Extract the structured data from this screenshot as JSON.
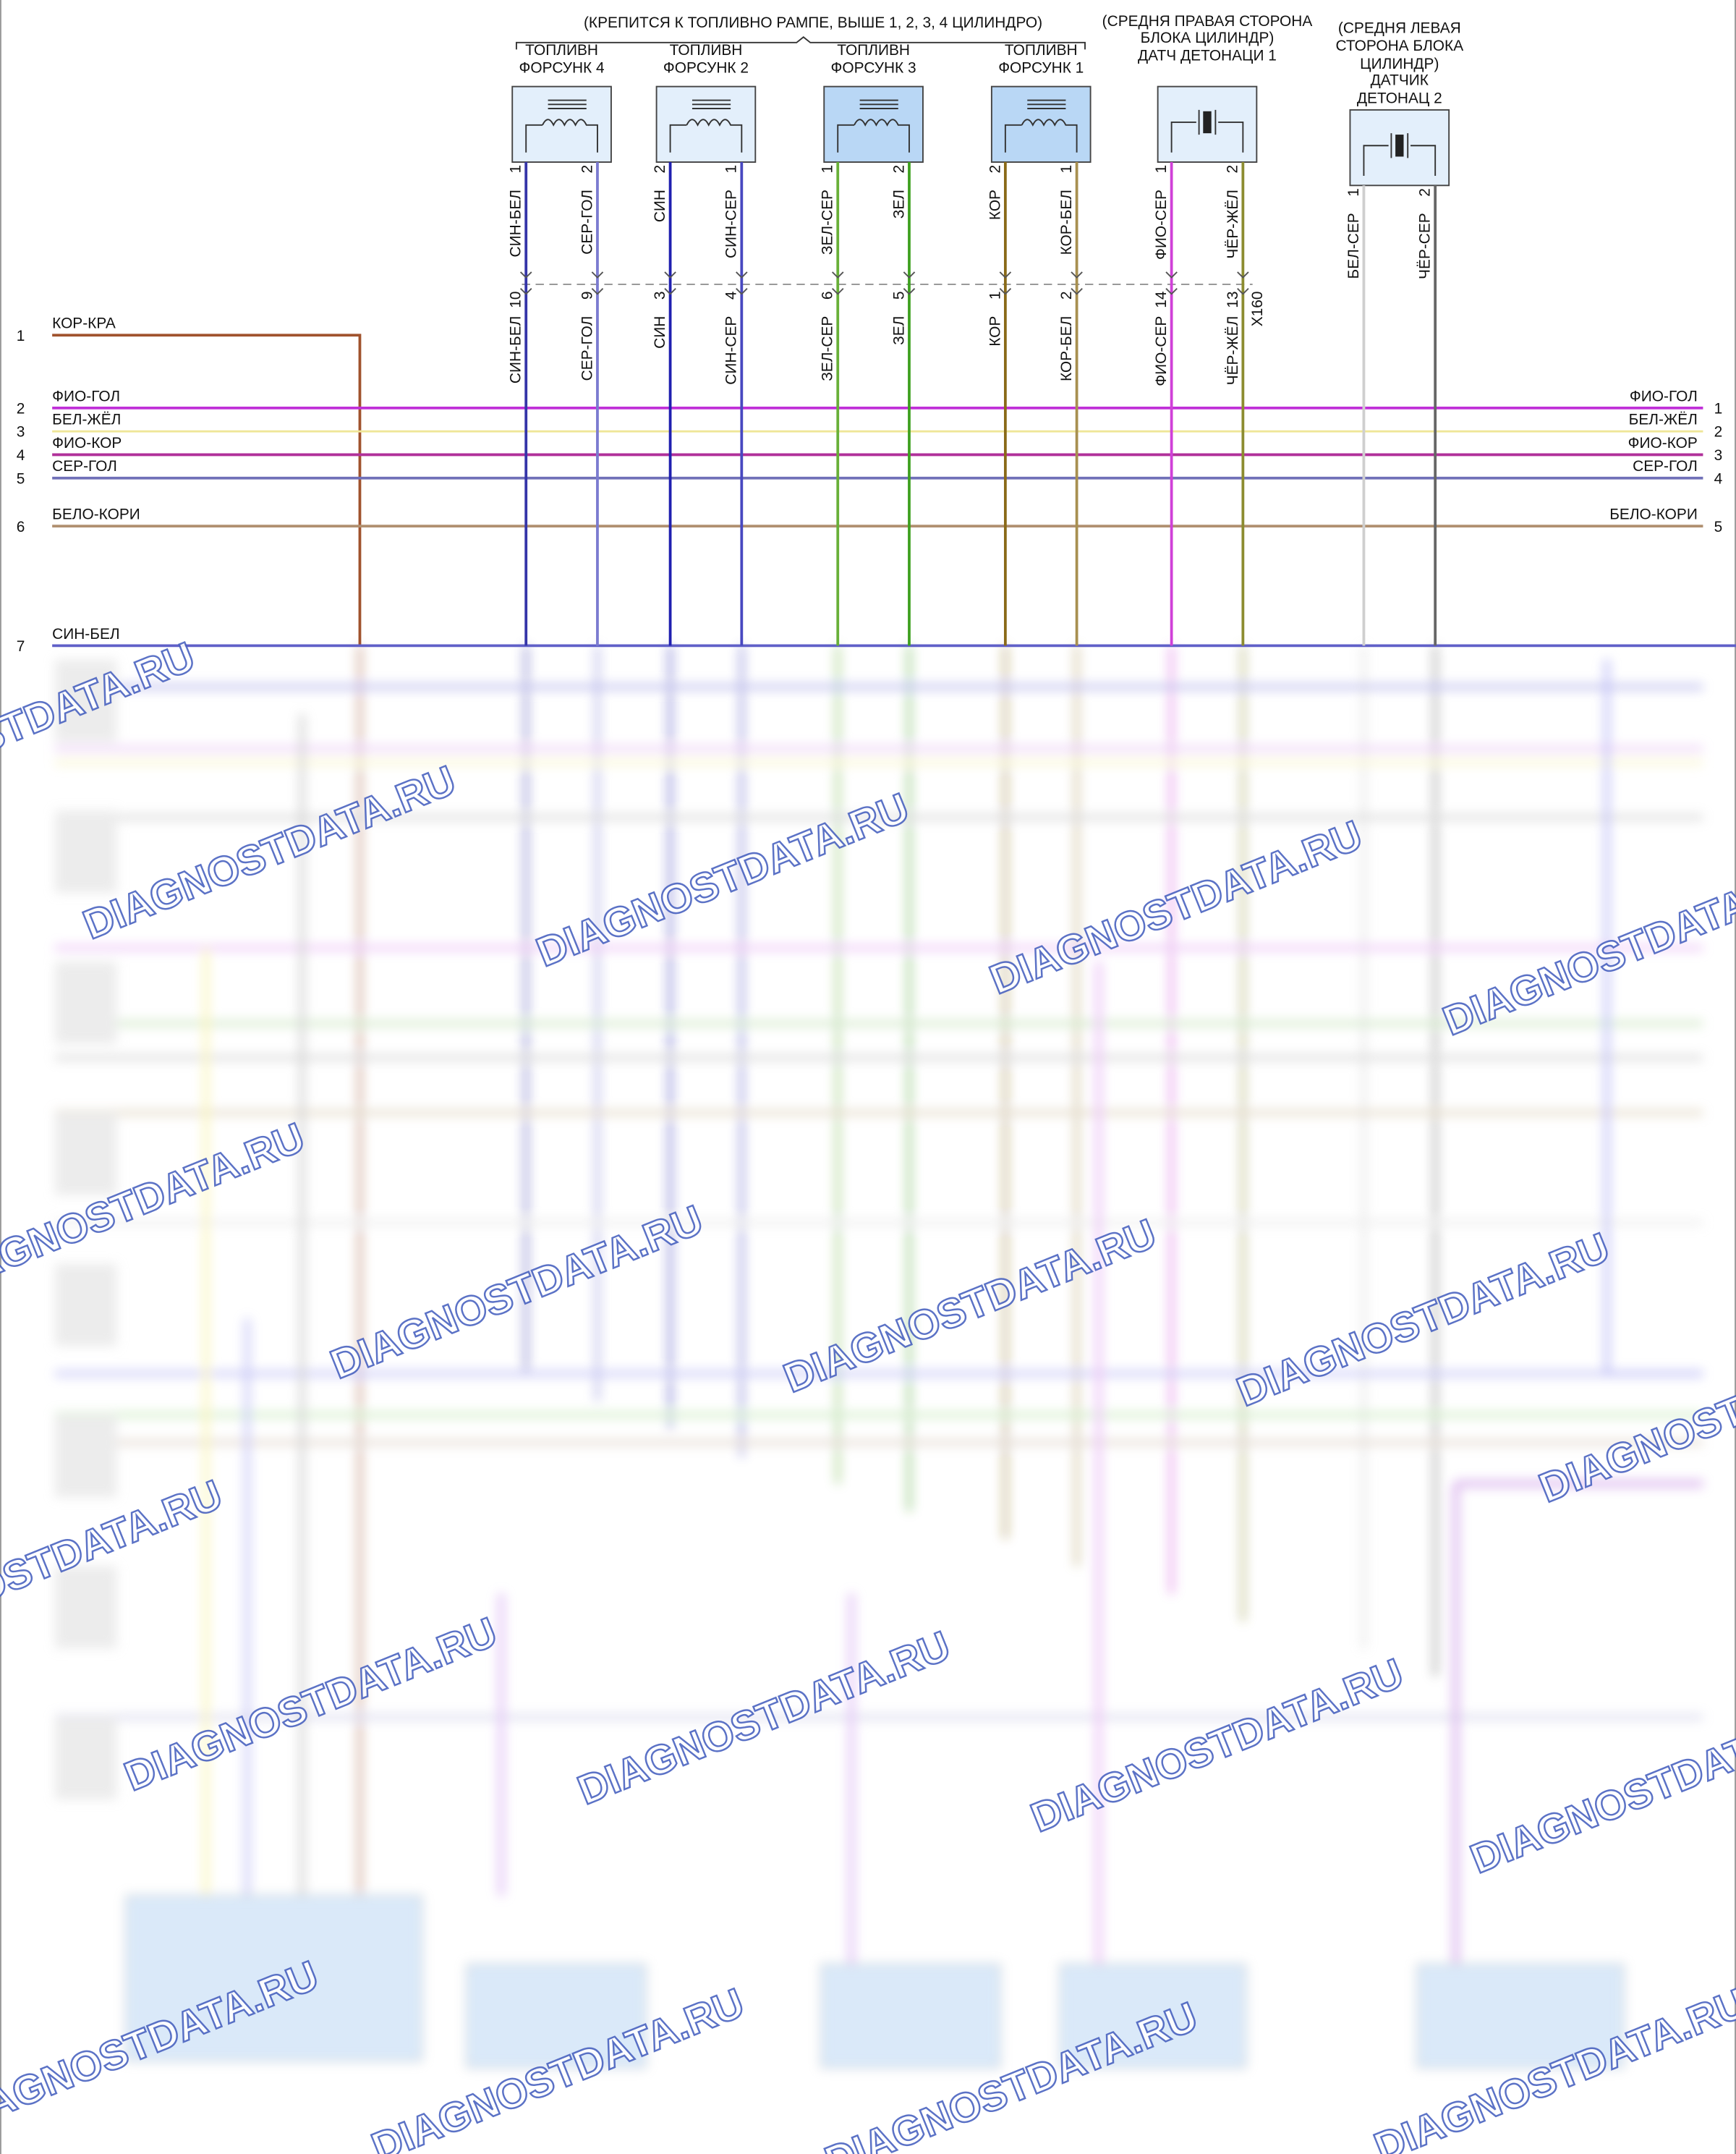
{
  "header": {
    "note": "(КРЕПИТСЯ К ТОПЛИВНО РАМПЕ, ВЫШЕ 1, 2, 3, 4 ЦИЛИНДРО)"
  },
  "injectors": [
    {
      "label": [
        "ТОПЛИВН",
        "ФОРСУНК 4"
      ],
      "pins": [
        {
          "wire": "СИН-БЕЛ",
          "pin": "1",
          "conn_pin": "10",
          "color": "#3535a8"
        },
        {
          "wire": "СЕР-ГОЛ",
          "pin": "2",
          "conn_pin": "9",
          "color": "#7b7bd0"
        }
      ]
    },
    {
      "label": [
        "ТОПЛИВН",
        "ФОРСУНК 2"
      ],
      "pins": [
        {
          "wire": "СИН",
          "pin": "2",
          "conn_pin": "3",
          "color": "#2020b0"
        },
        {
          "wire": "СИН-СЕР",
          "pin": "1",
          "conn_pin": "4",
          "color": "#4848c0"
        }
      ]
    },
    {
      "label": [
        "ТОПЛИВН",
        "ФОРСУНК 3"
      ],
      "pins": [
        {
          "wire": "ЗЕЛ-СЕР",
          "pin": "1",
          "conn_pin": "6",
          "color": "#68b038"
        },
        {
          "wire": "ЗЕЛ",
          "pin": "2",
          "conn_pin": "5",
          "color": "#3fa020"
        }
      ]
    },
    {
      "label": [
        "ТОПЛИВН",
        "ФОРСУНК 1"
      ],
      "pins": [
        {
          "wire": "КОР",
          "pin": "2",
          "conn_pin": "1",
          "color": "#8a6a18"
        },
        {
          "wire": "КОР-БЕЛ",
          "pin": "1",
          "conn_pin": "2",
          "color": "#a89050"
        }
      ]
    }
  ],
  "knock_sensors": [
    {
      "label": [
        "(СРЕДНЯ ПРАВАЯ СТОРОНА",
        "БЛОКА ЦИЛИНДР)",
        "ДАТЧ ДЕТОНАЦИ 1"
      ],
      "connector": "X160",
      "pins": [
        {
          "wire": "ФИО-СЕР",
          "pin": "1",
          "conn_pin": "14",
          "color": "#d040d8"
        },
        {
          "wire": "ЧЁР-ЖЁЛ",
          "pin": "2",
          "conn_pin": "13",
          "color": "#8c8c30"
        }
      ]
    },
    {
      "label": [
        "(СРЕДНЯ ЛЕВАЯ",
        "СТОРОНА БЛОКА",
        "ЦИЛИНДР)",
        "ДАТЧИК",
        "ДЕТОНАЦ 2"
      ],
      "pins": [
        {
          "wire": "БЕЛ-СЕР",
          "pin": "1",
          "color": "#cfcfcf"
        },
        {
          "wire": "ЧЁР-СЕР",
          "pin": "2",
          "color": "#666666"
        }
      ]
    }
  ],
  "rows": [
    {
      "num": "1",
      "wire": "КОР-КРА",
      "color": "#a0522d"
    },
    {
      "num": "2",
      "wire": "ФИО-ГОЛ",
      "color": "#c030d8",
      "right_wire": "ФИО-ГОЛ",
      "right_num": "1"
    },
    {
      "num": "3",
      "wire": "БЕЛ-ЖЁЛ",
      "color": "#efe698",
      "right_wire": "БЕЛ-ЖЁЛ",
      "right_num": "2"
    },
    {
      "num": "4",
      "wire": "ФИО-КОР",
      "color": "#b0309a",
      "right_wire": "ФИО-КОР",
      "right_num": "3"
    },
    {
      "num": "5",
      "wire": "СЕР-ГОЛ",
      "color": "#7070b8",
      "right_wire": "СЕР-ГОЛ",
      "right_num": "4"
    },
    {
      "num": "6",
      "wire": "БЕЛО-КОРИ",
      "color": "#b09070",
      "right_wire": "БЕЛО-КОРИ",
      "right_num": "5"
    },
    {
      "num": "7",
      "wire": "СИН-БЕЛ",
      "color": "#6060c8"
    }
  ],
  "watermark": "DIAGNOSTDATA.RU"
}
